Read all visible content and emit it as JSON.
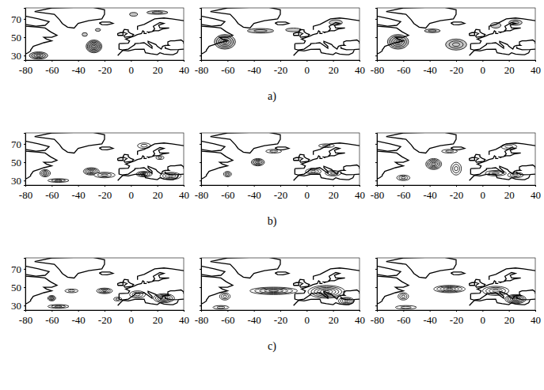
{
  "row_labels": [
    "a)",
    "b)",
    "c)"
  ],
  "coastlines": [
    [
      [
        -73,
        78
      ],
      [
        -60,
        82
      ],
      [
        -30,
        83
      ],
      [
        -20,
        80
      ],
      [
        -20,
        75
      ],
      [
        -22,
        70
      ],
      [
        -32,
        68
      ],
      [
        -40,
        65
      ],
      [
        -43,
        60
      ],
      [
        -48,
        61
      ],
      [
        -52,
        65
      ],
      [
        -54,
        69
      ],
      [
        -58,
        75
      ],
      [
        -68,
        77
      ],
      [
        -73,
        78
      ]
    ],
    [
      [
        -24,
        65.5
      ],
      [
        -22,
        66.5
      ],
      [
        -16,
        66.5
      ],
      [
        -13.5,
        65
      ],
      [
        -18,
        63.5
      ],
      [
        -22,
        63.8
      ],
      [
        -24,
        65.5
      ]
    ],
    [
      [
        -80,
        73
      ],
      [
        -70,
        70
      ],
      [
        -62,
        67
      ],
      [
        -65,
        63
      ],
      [
        -72,
        62
      ],
      [
        -80,
        64
      ]
    ],
    [
      [
        -80,
        62
      ],
      [
        -70,
        61
      ],
      [
        -65,
        60
      ],
      [
        -61,
        56
      ],
      [
        -56,
        52
      ],
      [
        -60,
        50
      ],
      [
        -66,
        50
      ],
      [
        -64,
        48
      ],
      [
        -60,
        46
      ],
      [
        -66,
        44
      ],
      [
        -70,
        42
      ],
      [
        -72,
        41
      ],
      [
        -74,
        40
      ],
      [
        -76,
        36
      ],
      [
        -76,
        35
      ],
      [
        -78,
        33
      ],
      [
        -81,
        31
      ]
    ],
    [
      [
        5,
        58
      ],
      [
        5,
        62
      ],
      [
        10,
        64
      ],
      [
        14,
        67
      ],
      [
        18,
        70
      ],
      [
        25,
        71
      ],
      [
        31,
        70
      ],
      [
        40,
        68
      ]
    ],
    [
      [
        12,
        56
      ],
      [
        13,
        55.5
      ],
      [
        16,
        56
      ],
      [
        18,
        59
      ],
      [
        17,
        62
      ],
      [
        22,
        66
      ],
      [
        25,
        65
      ],
      [
        21,
        63
      ],
      [
        22,
        60
      ],
      [
        29,
        60
      ],
      [
        24,
        59
      ],
      [
        21,
        57
      ],
      [
        18,
        57
      ],
      [
        13,
        55
      ]
    ],
    [
      [
        -9,
        43
      ],
      [
        -9,
        39
      ],
      [
        -9,
        37
      ],
      [
        -6,
        36
      ],
      [
        -2,
        37
      ],
      [
        0,
        39
      ],
      [
        3,
        42
      ],
      [
        3,
        43
      ],
      [
        7,
        43.5
      ],
      [
        10,
        44
      ],
      [
        12,
        42
      ],
      [
        16,
        38
      ],
      [
        16,
        40
      ],
      [
        13,
        44
      ],
      [
        13,
        45.5
      ],
      [
        19,
        42
      ],
      [
        20,
        40
      ],
      [
        23,
        37
      ],
      [
        24,
        40
      ],
      [
        26,
        41
      ],
      [
        29,
        41
      ],
      [
        28,
        42
      ],
      [
        28,
        45
      ],
      [
        30,
        46
      ],
      [
        33,
        46
      ],
      [
        38,
        47
      ],
      [
        40,
        45
      ],
      [
        40,
        43
      ]
    ],
    [
      [
        -9,
        43
      ],
      [
        -2,
        43.5
      ],
      [
        -1,
        46
      ],
      [
        -4,
        48
      ],
      [
        2,
        51
      ],
      [
        5,
        53
      ],
      [
        8,
        54
      ],
      [
        9,
        57
      ],
      [
        10,
        56
      ],
      [
        10,
        54
      ],
      [
        12,
        54
      ]
    ],
    [
      [
        26,
        40
      ],
      [
        26,
        38
      ],
      [
        30,
        36.3
      ],
      [
        36,
        36.5
      ],
      [
        40,
        37
      ]
    ],
    [
      [
        -10,
        30
      ],
      [
        -8,
        33
      ],
      [
        -6,
        35.8
      ],
      [
        -2,
        35
      ],
      [
        3,
        36.8
      ],
      [
        10,
        37
      ],
      [
        11,
        33
      ],
      [
        15,
        32
      ],
      [
        20,
        31
      ],
      [
        22,
        33
      ],
      [
        25,
        31.5
      ],
      [
        30,
        31
      ],
      [
        32,
        31
      ],
      [
        35,
        33
      ],
      [
        36,
        36
      ]
    ],
    [
      [
        -5,
        50
      ],
      [
        1,
        51
      ],
      [
        2,
        53
      ],
      [
        0,
        54
      ],
      [
        -2,
        56
      ],
      [
        -2,
        58
      ],
      [
        -5,
        58.5
      ],
      [
        -6,
        56
      ],
      [
        -5,
        55
      ],
      [
        -3,
        54
      ],
      [
        -5,
        52
      ],
      [
        -5,
        50
      ]
    ],
    [
      [
        -10,
        52
      ],
      [
        -6,
        52
      ],
      [
        -6,
        55
      ],
      [
        -8,
        55
      ],
      [
        -10,
        54
      ],
      [
        -10,
        52
      ]
    ]
  ],
  "chart_data": [
    {
      "type": "contour",
      "xlim": [
        -80,
        40
      ],
      "ylim": [
        25,
        82
      ],
      "xticks": [
        -80,
        -60,
        -40,
        -20,
        0,
        20,
        40
      ],
      "yticks": [
        30,
        50,
        70
      ],
      "tick_labels": true,
      "color": "#c8c8c8",
      "blobs": [
        {
          "lon": -28,
          "lat": 40,
          "rx": 6,
          "ry": 7,
          "levels": 6
        },
        {
          "lon": -70,
          "lat": 30,
          "rx": 7,
          "ry": 4,
          "levels": 4
        },
        {
          "lon": -35,
          "lat": 53,
          "rx": 2,
          "ry": 2,
          "levels": 1
        },
        {
          "lon": -25,
          "lat": 58,
          "rx": 2,
          "ry": 1.5,
          "levels": 1
        },
        {
          "lon": 20,
          "lat": 77,
          "rx": 8,
          "ry": 2,
          "levels": 2
        },
        {
          "lon": 2,
          "lat": 75,
          "rx": 3,
          "ry": 2,
          "levels": 1
        }
      ]
    },
    {
      "type": "contour",
      "xlim": [
        -80,
        40
      ],
      "ylim": [
        25,
        82
      ],
      "xticks": [
        -80,
        -60,
        -40,
        -20,
        0,
        20,
        40
      ],
      "yticks": [
        30,
        50,
        70
      ],
      "tick_labels": "x",
      "color": "#c8c8c8",
      "blobs": [
        {
          "lon": -62,
          "lat": 45,
          "rx": 8,
          "ry": 8,
          "levels": 5
        },
        {
          "lon": -35,
          "lat": 57,
          "rx": 10,
          "ry": 2.5,
          "levels": 2
        },
        {
          "lon": -10,
          "lat": 58,
          "rx": 6,
          "ry": 2,
          "levels": 1
        },
        {
          "lon": 22,
          "lat": 66,
          "rx": 5,
          "ry": 3,
          "levels": 1
        }
      ]
    },
    {
      "type": "contour",
      "xlim": [
        -80,
        40
      ],
      "ylim": [
        25,
        82
      ],
      "xticks": [
        -80,
        -60,
        -40,
        -20,
        0,
        20,
        40
      ],
      "yticks": [
        30,
        50,
        70
      ],
      "tick_labels": "x",
      "color": "#c8c8c8",
      "blobs": [
        {
          "lon": -64,
          "lat": 45,
          "rx": 8,
          "ry": 8,
          "levels": 5
        },
        {
          "lon": -20,
          "lat": 42,
          "rx": 8,
          "ry": 6,
          "levels": 3
        },
        {
          "lon": -38,
          "lat": 57,
          "rx": 6,
          "ry": 2,
          "levels": 2
        },
        {
          "lon": 10,
          "lat": 63,
          "rx": 4,
          "ry": 3,
          "levels": 1
        },
        {
          "lon": 25,
          "lat": 66,
          "rx": 5,
          "ry": 3,
          "levels": 2
        }
      ]
    },
    {
      "type": "contour",
      "xlim": [
        -80,
        40
      ],
      "ylim": [
        25,
        82
      ],
      "xticks": [
        -80,
        -60,
        -40,
        -20,
        0,
        20,
        40
      ],
      "yticks": [
        30,
        50,
        70
      ],
      "tick_labels": true,
      "color": "#ffffff",
      "blobs": [
        {
          "lon": -65,
          "lat": 38,
          "rx": 4,
          "ry": 4,
          "levels": 4
        },
        {
          "lon": -55,
          "lat": 30,
          "rx": 8,
          "ry": 2,
          "levels": 3
        },
        {
          "lon": -30,
          "lat": 40,
          "rx": 6,
          "ry": 4,
          "levels": 5
        },
        {
          "lon": -20,
          "lat": 36,
          "rx": 8,
          "ry": 3,
          "levels": 3
        },
        {
          "lon": 10,
          "lat": 37,
          "rx": 6,
          "ry": 3,
          "levels": 4
        },
        {
          "lon": 30,
          "lat": 35,
          "rx": 8,
          "ry": 4,
          "levels": 4
        },
        {
          "lon": 10,
          "lat": 68,
          "rx": 5,
          "ry": 3,
          "levels": 2
        },
        {
          "lon": 22,
          "lat": 55,
          "rx": 3,
          "ry": 2,
          "levels": 2
        }
      ]
    },
    {
      "type": "contour",
      "xlim": [
        -80,
        40
      ],
      "ylim": [
        25,
        82
      ],
      "xticks": [
        -80,
        -60,
        -40,
        -20,
        0,
        20,
        40
      ],
      "yticks": [
        30,
        50,
        70
      ],
      "tick_labels": "x",
      "color": "#ffffff",
      "blobs": [
        {
          "lon": -37,
          "lat": 50,
          "rx": 5,
          "ry": 4,
          "levels": 5
        },
        {
          "lon": -25,
          "lat": 62,
          "rx": 6,
          "ry": 2,
          "levels": 2
        },
        {
          "lon": -60,
          "lat": 37,
          "rx": 3,
          "ry": 3,
          "levels": 3
        },
        {
          "lon": 5,
          "lat": 40,
          "rx": 6,
          "ry": 3,
          "levels": 3
        },
        {
          "lon": 20,
          "lat": 38,
          "rx": 6,
          "ry": 3,
          "levels": 3
        },
        {
          "lon": 15,
          "lat": 68,
          "rx": 6,
          "ry": 2,
          "levels": 2
        }
      ]
    },
    {
      "type": "contour",
      "xlim": [
        -80,
        40
      ],
      "ylim": [
        25,
        82
      ],
      "xticks": [
        -80,
        -60,
        -40,
        -20,
        0,
        20,
        40
      ],
      "yticks": [
        30,
        50,
        70
      ],
      "tick_labels": "x",
      "color": "#ffffff",
      "blobs": [
        {
          "lon": -37,
          "lat": 48,
          "rx": 6,
          "ry": 6,
          "levels": 6
        },
        {
          "lon": -20,
          "lat": 43,
          "rx": 4,
          "ry": 7,
          "levels": 3
        },
        {
          "lon": -25,
          "lat": 62,
          "rx": 6,
          "ry": 2,
          "levels": 2
        },
        {
          "lon": -60,
          "lat": 33,
          "rx": 5,
          "ry": 3,
          "levels": 3
        },
        {
          "lon": 10,
          "lat": 38,
          "rx": 8,
          "ry": 3,
          "levels": 3
        },
        {
          "lon": 25,
          "lat": 36,
          "rx": 6,
          "ry": 3,
          "levels": 3
        },
        {
          "lon": 20,
          "lat": 67,
          "rx": 6,
          "ry": 3,
          "levels": 2
        }
      ]
    },
    {
      "type": "contour",
      "xlim": [
        -80,
        40
      ],
      "ylim": [
        25,
        82
      ],
      "xticks": [
        -80,
        -60,
        -40,
        -20,
        0,
        20,
        40
      ],
      "yticks": [
        30,
        50,
        70
      ],
      "tick_labels": true,
      "color": "#ffffff",
      "blobs": [
        {
          "lon": -60,
          "lat": 38,
          "rx": 3,
          "ry": 3,
          "levels": 4
        },
        {
          "lon": -55,
          "lat": 29,
          "rx": 8,
          "ry": 2,
          "levels": 3
        },
        {
          "lon": -45,
          "lat": 46,
          "rx": 5,
          "ry": 2,
          "levels": 2
        },
        {
          "lon": -20,
          "lat": 46,
          "rx": 6,
          "ry": 3,
          "levels": 4
        },
        {
          "lon": 5,
          "lat": 42,
          "rx": 6,
          "ry": 4,
          "levels": 3
        },
        {
          "lon": 25,
          "lat": 38,
          "rx": 8,
          "ry": 5,
          "levels": 5
        },
        {
          "lon": -10,
          "lat": 37,
          "rx": 3,
          "ry": 2,
          "levels": 2
        }
      ]
    },
    {
      "type": "contour",
      "xlim": [
        -80,
        40
      ],
      "ylim": [
        25,
        82
      ],
      "xticks": [
        -80,
        -60,
        -40,
        -20,
        0,
        20,
        40
      ],
      "yticks": [
        30,
        50,
        70
      ],
      "tick_labels": "x",
      "color": "#ffffff",
      "blobs": [
        {
          "lon": -25,
          "lat": 46,
          "rx": 18,
          "ry": 4,
          "levels": 5
        },
        {
          "lon": 15,
          "lat": 45,
          "rx": 14,
          "ry": 7,
          "levels": 6
        },
        {
          "lon": -62,
          "lat": 40,
          "rx": 4,
          "ry": 4,
          "levels": 3
        },
        {
          "lon": 30,
          "lat": 35,
          "rx": 6,
          "ry": 4,
          "levels": 4
        },
        {
          "lon": -65,
          "lat": 28,
          "rx": 6,
          "ry": 2,
          "levels": 2
        }
      ]
    },
    {
      "type": "contour",
      "xlim": [
        -80,
        40
      ],
      "ylim": [
        25,
        82
      ],
      "xticks": [
        -80,
        -60,
        -40,
        -20,
        0,
        20,
        40
      ],
      "yticks": [
        30,
        50,
        70
      ],
      "tick_labels": "x",
      "color": "#ffffff",
      "blobs": [
        {
          "lon": -25,
          "lat": 48,
          "rx": 12,
          "ry": 4,
          "levels": 5
        },
        {
          "lon": 10,
          "lat": 46,
          "rx": 10,
          "ry": 5,
          "levels": 4
        },
        {
          "lon": 25,
          "lat": 37,
          "rx": 8,
          "ry": 5,
          "levels": 6
        },
        {
          "lon": -60,
          "lat": 40,
          "rx": 4,
          "ry": 4,
          "levels": 3
        },
        {
          "lon": -58,
          "lat": 28,
          "rx": 8,
          "ry": 2,
          "levels": 2
        }
      ]
    }
  ]
}
